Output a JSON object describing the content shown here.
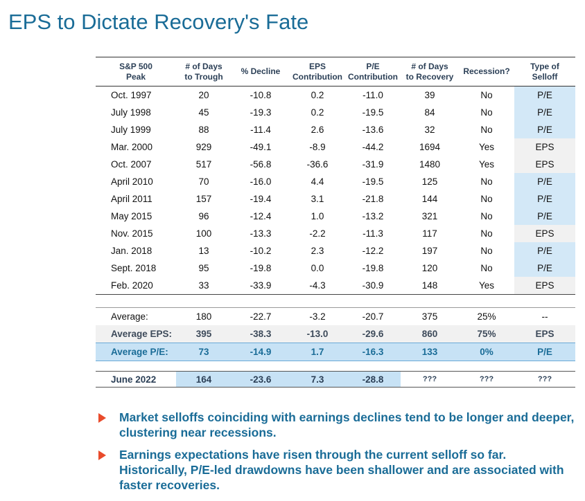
{
  "title": "EPS to Dictate Recovery's Fate",
  "chart_data": {
    "type": "table",
    "columns": [
      "S&P 500 Peak",
      "# of Days to Trough",
      "% Decline",
      "EPS Contribution",
      "P/E Contribution",
      "# of Days to Recovery",
      "Recession?",
      "Type of Selloff"
    ],
    "header_lines": [
      [
        "S&P 500",
        "Peak"
      ],
      [
        "# of Days",
        "to Trough"
      ],
      [
        "% Decline",
        ""
      ],
      [
        "EPS",
        "Contribution"
      ],
      [
        "P/E",
        "Contribution"
      ],
      [
        "# of Days",
        "to Recovery"
      ],
      [
        "Recession?",
        ""
      ],
      [
        "Type of",
        "Selloff"
      ]
    ],
    "rows": [
      [
        "Oct. 1997",
        "20",
        "-10.8",
        "0.2",
        "-11.0",
        "39",
        "No",
        "P/E"
      ],
      [
        "July 1998",
        "45",
        "-19.3",
        "0.2",
        "-19.5",
        "84",
        "No",
        "P/E"
      ],
      [
        "July 1999",
        "88",
        "-11.4",
        "2.6",
        "-13.6",
        "32",
        "No",
        "P/E"
      ],
      [
        "Mar. 2000",
        "929",
        "-49.1",
        "-8.9",
        "-44.2",
        "1694",
        "Yes",
        "EPS"
      ],
      [
        "Oct. 2007",
        "517",
        "-56.8",
        "-36.6",
        "-31.9",
        "1480",
        "Yes",
        "EPS"
      ],
      [
        "April 2010",
        "70",
        "-16.0",
        "4.4",
        "-19.5",
        "125",
        "No",
        "P/E"
      ],
      [
        "April 2011",
        "157",
        "-19.4",
        "3.1",
        "-21.8",
        "144",
        "No",
        "P/E"
      ],
      [
        "May 2015",
        "96",
        "-12.4",
        "1.0",
        "-13.2",
        "321",
        "No",
        "P/E"
      ],
      [
        "Nov. 2015",
        "100",
        "-13.3",
        "-2.2",
        "-11.3",
        "117",
        "No",
        "EPS"
      ],
      [
        "Jan. 2018",
        "13",
        "-10.2",
        "2.3",
        "-12.2",
        "197",
        "No",
        "P/E"
      ],
      [
        "Sept. 2018",
        "95",
        "-19.8",
        "0.0",
        "-19.8",
        "120",
        "No",
        "P/E"
      ],
      [
        "Feb. 2020",
        "33",
        "-33.9",
        "-4.3",
        "-30.9",
        "148",
        "Yes",
        "EPS"
      ]
    ],
    "summary": {
      "average": [
        "Average:",
        "180",
        "-22.7",
        "-3.2",
        "-20.7",
        "375",
        "25%",
        "--"
      ],
      "average_eps": [
        "Average EPS:",
        "395",
        "-38.3",
        "-13.0",
        "-29.6",
        "860",
        "75%",
        "EPS"
      ],
      "average_pe": [
        "Average P/E:",
        "73",
        "-14.9",
        "1.7",
        "-16.3",
        "133",
        "0%",
        "P/E"
      ]
    },
    "current": [
      "June 2022",
      "164",
      "-23.6",
      "7.3",
      "-28.8",
      "???",
      "???",
      "???"
    ]
  },
  "bullets": [
    "Market selloffs coinciding with earnings declines tend to be longer and deeper, clustering near recessions.",
    "Earnings expectations have risen through the current selloff so far. Historically, P/E-led drawdowns have been shallower and are associated with faster recoveries."
  ],
  "colors": {
    "title": "#1a6c97",
    "pe_fill": "#d3e8f7",
    "eps_fill": "#f1f1f1",
    "bullet_arrow": "#e94b2b"
  }
}
